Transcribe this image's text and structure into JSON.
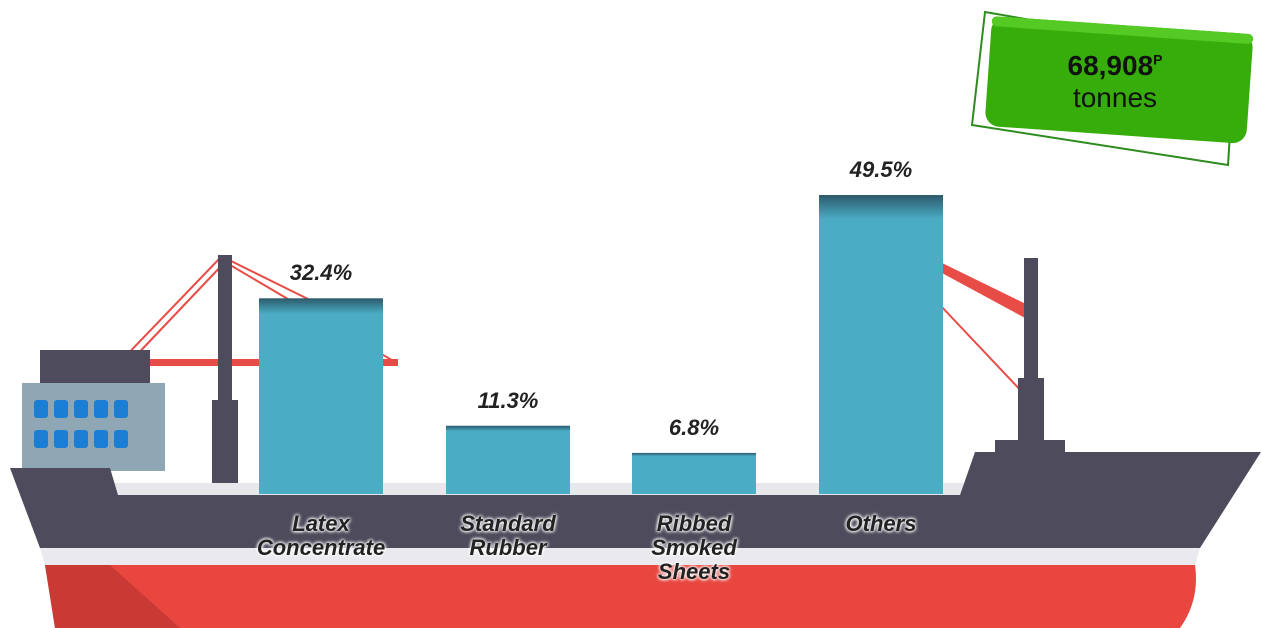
{
  "chart_data": {
    "type": "bar",
    "categories": [
      "Latex Concentrate",
      "Standard Rubber",
      "Ribbed Smoked Sheets",
      "Others"
    ],
    "values": [
      32.4,
      11.3,
      6.8,
      49.5
    ],
    "value_labels": [
      "32.4%",
      "11.3%",
      "6.8%",
      "49.5%"
    ],
    "color": "#4aacc5",
    "total": {
      "value": "68,908",
      "superscript": "P",
      "unit": "tonnes"
    }
  }
}
